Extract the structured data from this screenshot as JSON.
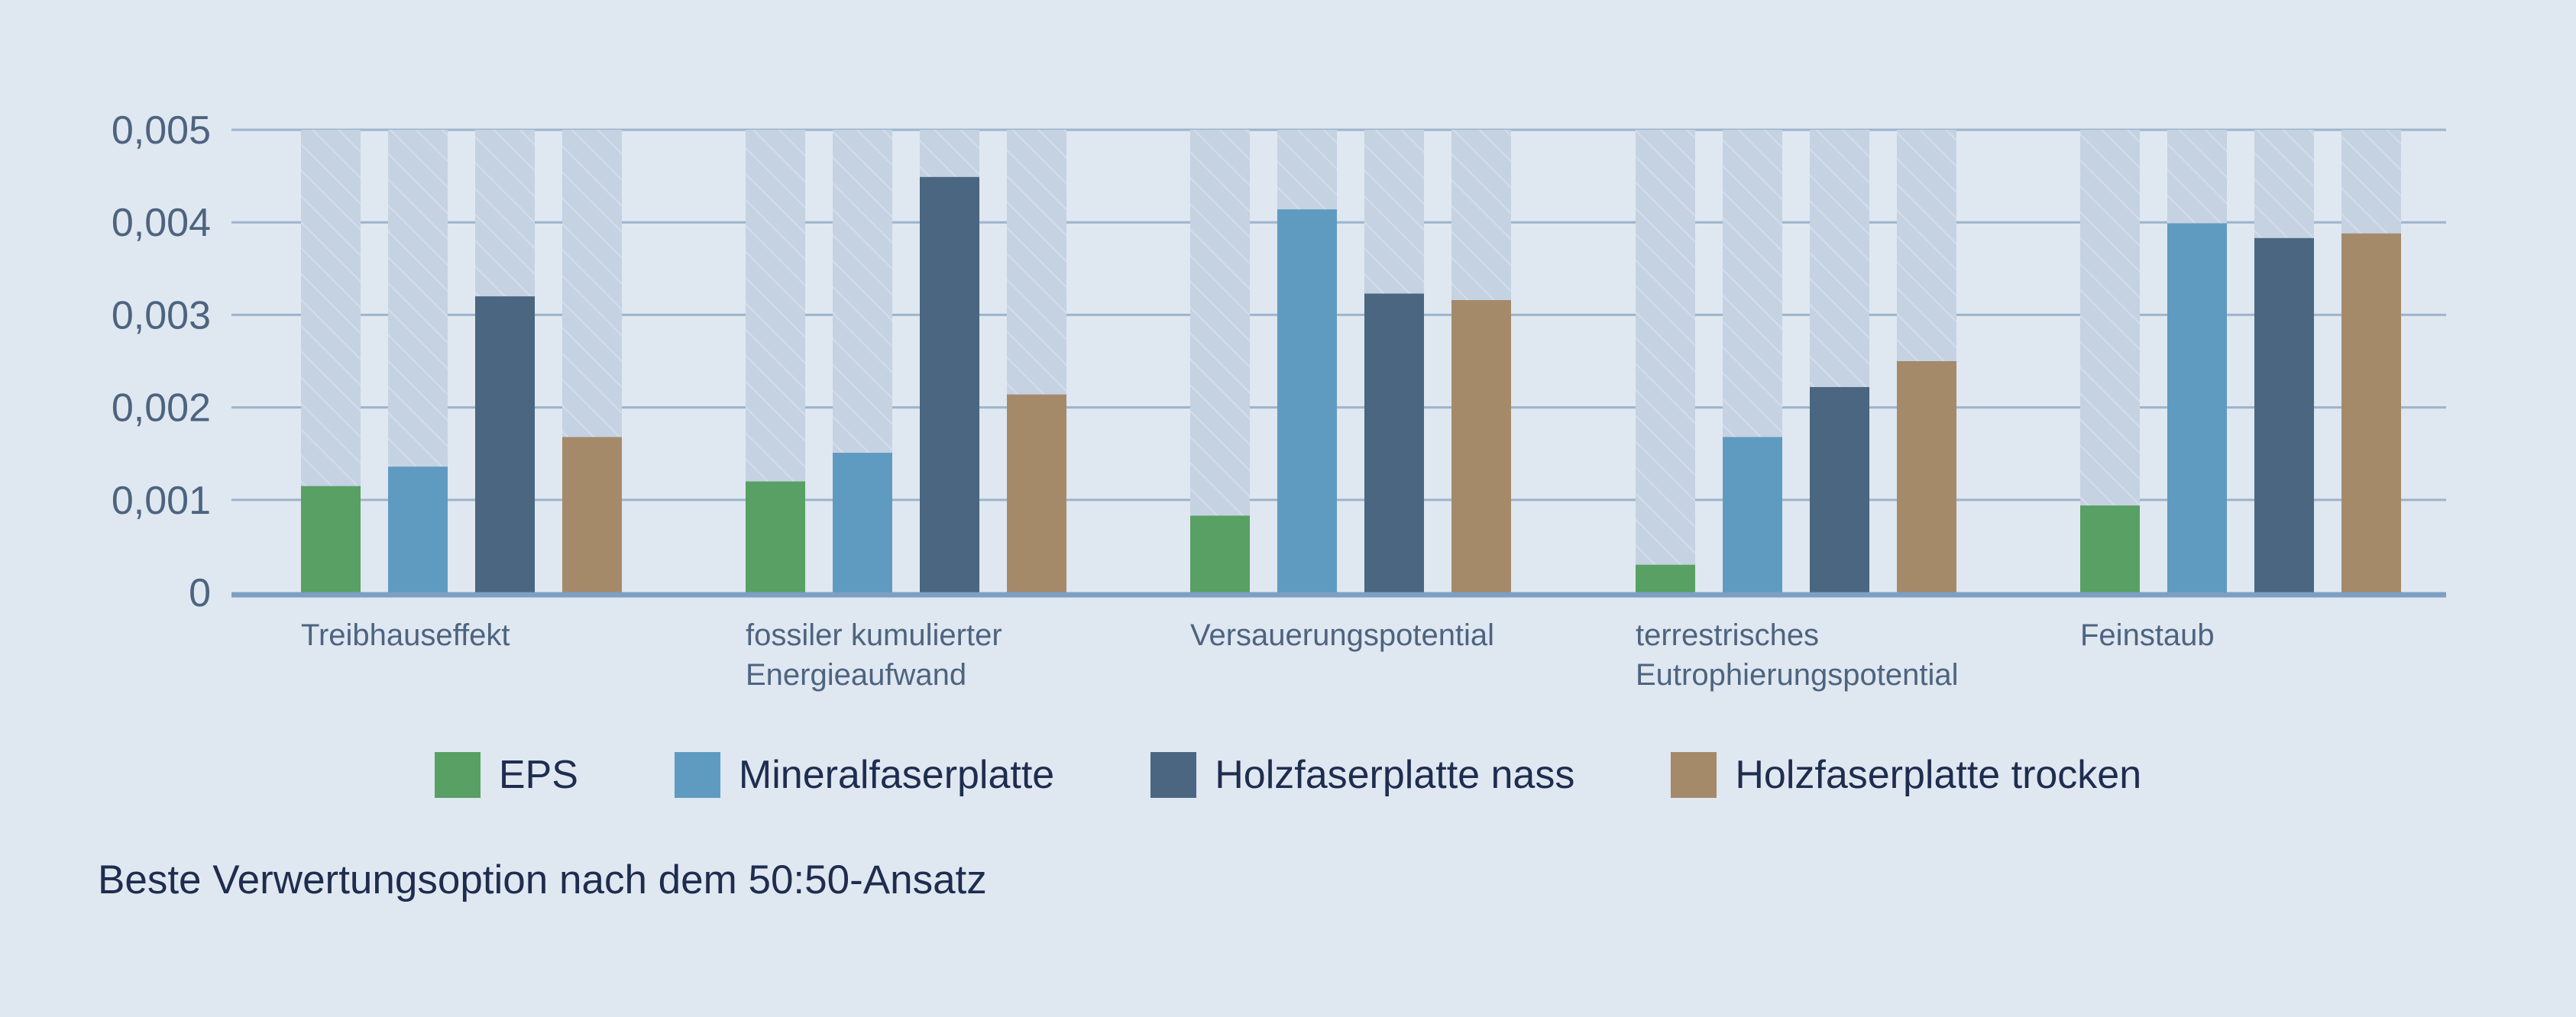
{
  "chart_data": {
    "type": "bar",
    "categories": [
      [
        "Treibhauseffekt"
      ],
      [
        "fossiler kumulierter",
        "Energieaufwand"
      ],
      [
        "Versauerungspotential"
      ],
      [
        "terrestrisches",
        "Eutrophierungspotential"
      ],
      [
        "Feinstaub"
      ]
    ],
    "series": [
      {
        "name": "EPS",
        "color": "#58a064",
        "values": [
          0.00115,
          0.0012,
          0.00083,
          0.0003,
          0.00094
        ]
      },
      {
        "name": "Mineralfaserplatte",
        "color": "#5f9bc1",
        "values": [
          0.00136,
          0.00151,
          0.00414,
          0.00168,
          0.00399
        ]
      },
      {
        "name": "Holzfaserplatte nass",
        "color": "#4a6680",
        "values": [
          0.0032,
          0.00449,
          0.00323,
          0.00222,
          0.00383
        ]
      },
      {
        "name": "Holzfaserplatte trocken",
        "color": "#a58a6a",
        "values": [
          0.00168,
          0.00214,
          0.00316,
          0.0025,
          0.00388
        ]
      }
    ],
    "ylim": [
      0,
      0.005
    ],
    "yticks": [
      "0",
      "0,001",
      "0,002",
      "0,003",
      "0,004",
      "0,005"
    ],
    "ytick_values": [
      0,
      0.001,
      0.002,
      0.003,
      0.004,
      0.005
    ],
    "grid": true,
    "legend_position": "bottom",
    "background_bars": true
  },
  "legend": {
    "items": [
      "EPS",
      "Mineralfaserplatte",
      "Holzfaserplatte nass",
      "Holzfaserplatte trocken"
    ]
  },
  "footnote": "Beste Verwertungsoption nach dem 50:50-Ansatz"
}
